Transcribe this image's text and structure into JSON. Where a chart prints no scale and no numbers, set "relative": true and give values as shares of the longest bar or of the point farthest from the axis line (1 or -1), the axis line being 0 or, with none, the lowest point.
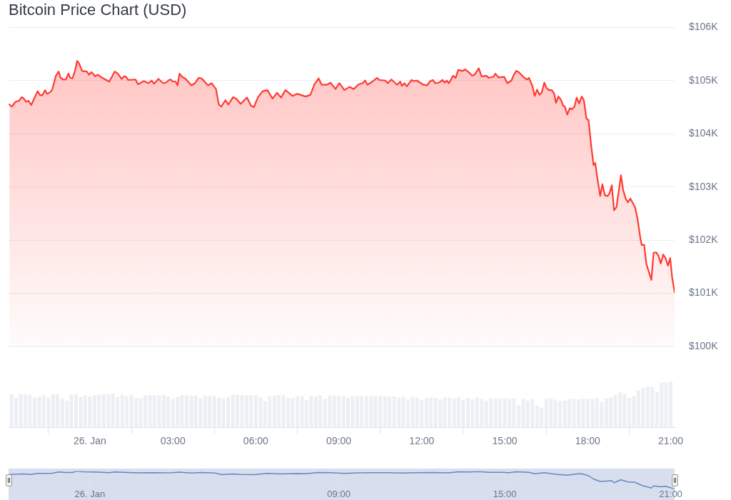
{
  "chart_data": [
    {
      "type": "area",
      "title": "Bitcoin Price Chart (USD)",
      "color": "#ff3a33",
      "xlim": [
        -2.94,
        21.14
      ],
      "ylim": [
        100000,
        106000
      ],
      "yticks": [
        {
          "value": 100000,
          "label": "$100K"
        },
        {
          "value": 101000,
          "label": "$101K"
        },
        {
          "value": 102000,
          "label": "$102K"
        },
        {
          "value": 103000,
          "label": "$103K"
        },
        {
          "value": 104000,
          "label": "$104K"
        },
        {
          "value": 105000,
          "label": "$105K"
        },
        {
          "value": 106000,
          "label": "$106K"
        }
      ],
      "grid": "y",
      "tick_labels": "y",
      "x": [
        -2.91,
        -2.82,
        -2.69,
        -2.56,
        -2.46,
        -2.39,
        -2.3,
        -2.22,
        -2.12,
        -1.89,
        -1.81,
        -1.72,
        -1.62,
        -1.55,
        -1.44,
        -1.36,
        -1.23,
        -1.13,
        -1.06,
        -0.97,
        -0.87,
        -0.78,
        -0.71,
        -0.63,
        -0.54,
        -0.46,
        -0.39,
        -0.28,
        -0.11,
        -0.03,
        0.06,
        0.19,
        0.29,
        0.45,
        0.7,
        0.9,
        1.01,
        1.15,
        1.24,
        1.31,
        1.39,
        1.65,
        1.74,
        1.95,
        2.12,
        2.23,
        2.32,
        2.48,
        2.65,
        2.75,
        2.86,
        2.92,
        3,
        3.1,
        3.17,
        3.24,
        3.33,
        3.46,
        3.67,
        3.8,
        3.93,
        4.04,
        4.27,
        4.4,
        4.56,
        4.66,
        4.75,
        4.9,
        5.01,
        5.18,
        5.31,
        5.45,
        5.68,
        5.82,
        5.93,
        6.08,
        6.25,
        6.42,
        6.6,
        6.77,
        6.91,
        7.07,
        7.33,
        7.5,
        7.8,
        7.97,
        8.12,
        8.27,
        8.38,
        8.57,
        8.7,
        8.88,
        9.02,
        9.2,
        9.39,
        9.54,
        9.72,
        9.86,
        9.95,
        10.04,
        10.21,
        10.38,
        10.47,
        10.68,
        10.77,
        10.9,
        11.11,
        11.22,
        11.28,
        11.37,
        11.46,
        11.63,
        11.71,
        11.82,
        12.06,
        12.19,
        12.31,
        12.4,
        12.49,
        12.62,
        12.75,
        12.83,
        12.9,
        12.98,
        13.13,
        13.22,
        13.32,
        13.48,
        13.56,
        13.69,
        13.82,
        13.91,
        14.06,
        14.16,
        14.34,
        14.42,
        14.59,
        14.66,
        14.77,
        14.98,
        15.09,
        15.24,
        15.31,
        15.41,
        15.5,
        15.67,
        15.8,
        15.87,
        16,
        16.08,
        16.17,
        16.25,
        16.34,
        16.43,
        16.51,
        16.6,
        16.7,
        16.79,
        16.85,
        16.94,
        17.03,
        17.11,
        17.17,
        17.26,
        17.35,
        17.43,
        17.52,
        17.6,
        17.69,
        17.78,
        17.86,
        17.95,
        18.03,
        18.12,
        18.21,
        18.27,
        18.36,
        18.45,
        18.53,
        18.62,
        18.72,
        18.78,
        18.87,
        18.95,
        19.04,
        19.2,
        19.28,
        19.37,
        19.45,
        19.54,
        19.71,
        19.8,
        19.9,
        19.95,
        20.04,
        20.12,
        20.3,
        20.38,
        20.47,
        20.56,
        20.64,
        20.73,
        20.81,
        20.9,
        20.98,
        21.05,
        21.14
      ],
      "values": [
        104550,
        104510,
        104600,
        104620,
        104690,
        104660,
        104600,
        104620,
        104540,
        104800,
        104730,
        104720,
        104820,
        104750,
        104780,
        104830,
        105090,
        105170,
        105050,
        105020,
        105020,
        105130,
        105050,
        105040,
        105180,
        105370,
        105320,
        105180,
        105170,
        105110,
        105160,
        105080,
        105110,
        105050,
        104980,
        105170,
        105130,
        105030,
        105080,
        105070,
        105010,
        105020,
        104930,
        104990,
        104950,
        105000,
        104940,
        105030,
        104950,
        104960,
        105010,
        105020,
        104980,
        104980,
        104910,
        105130,
        105070,
        105030,
        104910,
        104950,
        105050,
        105040,
        104910,
        104950,
        104840,
        104550,
        104510,
        104630,
        104550,
        104690,
        104650,
        104560,
        104680,
        104530,
        104500,
        104690,
        104800,
        104820,
        104660,
        104770,
        104680,
        104820,
        104710,
        104750,
        104700,
        104730,
        104930,
        105040,
        104920,
        104920,
        104960,
        104840,
        104950,
        104820,
        104880,
        104840,
        104930,
        104950,
        105000,
        104920,
        104980,
        105050,
        105010,
        105000,
        104950,
        105020,
        104920,
        104980,
        104900,
        104950,
        104890,
        105010,
        104990,
        105000,
        104920,
        104910,
        104990,
        105010,
        104950,
        104960,
        105010,
        104960,
        105000,
        104950,
        105090,
        105050,
        105200,
        105180,
        105210,
        105160,
        105090,
        105110,
        105230,
        105080,
        105090,
        105050,
        105070,
        105130,
        105060,
        105070,
        104950,
        105000,
        105090,
        105180,
        105160,
        105070,
        105020,
        105050,
        104900,
        104710,
        104830,
        104730,
        104780,
        104960,
        104860,
        104820,
        104820,
        104750,
        104580,
        104700,
        104640,
        104530,
        104510,
        104360,
        104480,
        104460,
        104510,
        104680,
        104570,
        104700,
        104630,
        104290,
        104250,
        103790,
        103410,
        103450,
        103120,
        102830,
        103050,
        102840,
        102830,
        102870,
        103030,
        102560,
        102620,
        103220,
        102940,
        102780,
        102710,
        102780,
        102620,
        102400,
        102040,
        101910,
        101910,
        101550,
        101250,
        101760,
        101770,
        101700,
        101560,
        101730,
        101660,
        101520,
        101660,
        101300,
        101020
      ]
    },
    {
      "type": "bar",
      "color": "#eceff3",
      "relative": true,
      "xlim": [
        -2.94,
        21.14
      ],
      "tick_labels": "x",
      "xticks": [
        {
          "value": 0,
          "label": "26. Jan"
        },
        {
          "value": 3,
          "label": "03:00"
        },
        {
          "value": 6,
          "label": "06:00"
        },
        {
          "value": 9,
          "label": "09:00"
        },
        {
          "value": 12,
          "label": "12:00"
        },
        {
          "value": 15,
          "label": "15:00"
        },
        {
          "value": 18,
          "label": "18:00"
        },
        {
          "value": 21,
          "label": "21:00"
        }
      ],
      "x": [
        -2.83,
        -2.67,
        -2.5,
        -2.33,
        -2.17,
        -2,
        -1.83,
        -1.67,
        -1.5,
        -1.33,
        -1.17,
        -1,
        -0.83,
        -0.67,
        -0.5,
        -0.33,
        -0.17,
        0,
        0.17,
        0.33,
        0.5,
        0.67,
        0.83,
        1,
        1.17,
        1.33,
        1.5,
        1.67,
        1.83,
        2,
        2.17,
        2.33,
        2.5,
        2.67,
        2.83,
        3,
        3.17,
        3.33,
        3.5,
        3.67,
        3.83,
        4,
        4.17,
        4.33,
        4.5,
        4.67,
        4.83,
        5,
        5.17,
        5.33,
        5.5,
        5.67,
        5.83,
        6,
        6.17,
        6.33,
        6.5,
        6.67,
        6.83,
        7,
        7.17,
        7.33,
        7.5,
        7.67,
        7.83,
        8,
        8.17,
        8.33,
        8.5,
        8.67,
        8.83,
        9,
        9.17,
        9.33,
        9.5,
        9.67,
        9.83,
        10,
        10.17,
        10.33,
        10.5,
        10.67,
        10.83,
        11,
        11.17,
        11.33,
        11.5,
        11.67,
        11.83,
        12,
        12.17,
        12.33,
        12.5,
        12.67,
        12.83,
        13,
        13.17,
        13.33,
        13.5,
        13.67,
        13.83,
        14,
        14.17,
        14.33,
        14.5,
        14.67,
        14.83,
        15,
        15.17,
        15.33,
        15.5,
        15.67,
        15.83,
        16,
        16.17,
        16.33,
        16.5,
        16.67,
        16.83,
        17,
        17.17,
        17.33,
        17.5,
        17.67,
        17.83,
        18,
        18.17,
        18.33,
        18.5,
        18.67,
        18.83,
        19,
        19.17,
        19.33,
        19.5,
        19.67,
        19.83,
        20,
        20.17,
        20.33,
        20.5,
        20.67,
        20.83,
        21
      ],
      "values": [
        0.72,
        0.64,
        0.72,
        0.72,
        0.71,
        0.64,
        0.66,
        0.7,
        0.65,
        0.72,
        0.72,
        0.63,
        0.58,
        0.71,
        0.72,
        0.66,
        0.7,
        0.67,
        0.7,
        0.71,
        0.72,
        0.72,
        0.73,
        0.66,
        0.71,
        0.67,
        0.71,
        0.64,
        0.63,
        0.7,
        0.7,
        0.7,
        0.7,
        0.7,
        0.67,
        0.62,
        0.66,
        0.7,
        0.69,
        0.69,
        0.69,
        0.63,
        0.69,
        0.68,
        0.68,
        0.64,
        0.62,
        0.66,
        0.71,
        0.7,
        0.7,
        0.7,
        0.7,
        0.7,
        0.64,
        0.57,
        0.67,
        0.69,
        0.7,
        0.7,
        0.64,
        0.64,
        0.68,
        0.68,
        0.59,
        0.68,
        0.67,
        0.7,
        0.62,
        0.69,
        0.69,
        0.68,
        0.67,
        0.64,
        0.68,
        0.68,
        0.68,
        0.68,
        0.68,
        0.68,
        0.68,
        0.68,
        0.67,
        0.67,
        0.65,
        0.66,
        0.6,
        0.66,
        0.64,
        0.6,
        0.64,
        0.65,
        0.64,
        0.61,
        0.65,
        0.64,
        0.62,
        0.65,
        0.6,
        0.64,
        0.61,
        0.65,
        0.62,
        0.58,
        0.63,
        0.63,
        0.62,
        0.63,
        0.62,
        0.63,
        0.48,
        0.62,
        0.58,
        0.61,
        0.47,
        0.43,
        0.62,
        0.63,
        0.6,
        0.57,
        0.58,
        0.61,
        0.62,
        0.61,
        0.62,
        0.62,
        0.62,
        0.63,
        0.55,
        0.63,
        0.65,
        0.7,
        0.76,
        0.73,
        0.64,
        0.68,
        0.8,
        0.86,
        0.89,
        0.88,
        0.77,
        0.97,
        0.98,
        1
      ]
    },
    {
      "type": "line",
      "color": "#6685c2",
      "relative": true,
      "xlim": [
        -2.94,
        21.14
      ],
      "grid": "x",
      "tick_labels": "x",
      "xticks": [
        {
          "value": 0,
          "label": "26. Jan"
        },
        {
          "value": 9,
          "label": "09:00"
        },
        {
          "value": 15,
          "label": "15:00"
        },
        {
          "value": 21,
          "label": "21:00"
        }
      ],
      "x": [
        -2.91,
        -2.56,
        -2.39,
        -2.12,
        -1.89,
        -1.62,
        -1.36,
        -1.13,
        -0.87,
        -0.63,
        -0.46,
        -0.28,
        0.06,
        0.45,
        0.7,
        0.9,
        1.39,
        1.74,
        2.23,
        2.65,
        3,
        3.24,
        3.67,
        4.04,
        4.4,
        4.56,
        4.75,
        5.18,
        5.45,
        5.93,
        6.42,
        6.91,
        7.5,
        7.8,
        8.27,
        8.7,
        9.2,
        9.72,
        10.21,
        10.68,
        11.28,
        11.82,
        12.4,
        12.98,
        13.32,
        13.69,
        14.06,
        14.42,
        14.98,
        15.09,
        15.41,
        15.87,
        16.08,
        16.43,
        16.85,
        17.26,
        17.6,
        17.78,
        18.03,
        18.21,
        18.45,
        18.87,
        18.95,
        19.2,
        19.45,
        19.71,
        19.95,
        20.3,
        20.38,
        20.64,
        20.81,
        20.9,
        21.14
      ],
      "values": [
        0.81,
        0.83,
        0.84,
        0.81,
        0.87,
        0.87,
        0.88,
        0.95,
        0.92,
        0.92,
        1,
        0.96,
        0.95,
        0.93,
        0.91,
        0.95,
        0.92,
        0.9,
        0.91,
        0.9,
        0.91,
        0.94,
        0.89,
        0.92,
        0.9,
        0.88,
        0.8,
        0.84,
        0.81,
        0.8,
        0.87,
        0.84,
        0.86,
        0.85,
        0.92,
        0.91,
        0.87,
        0.9,
        0.91,
        0.91,
        0.89,
        0.91,
        0.92,
        0.9,
        0.96,
        0.95,
        0.97,
        0.93,
        0.93,
        0.9,
        0.96,
        0.93,
        0.85,
        0.91,
        0.82,
        0.77,
        0.84,
        0.85,
        0.74,
        0.55,
        0.42,
        0.46,
        0.35,
        0.51,
        0.39,
        0.37,
        0.2,
        0.05,
        0.17,
        0.12,
        0.15,
        0.11,
        0
      ]
    }
  ]
}
